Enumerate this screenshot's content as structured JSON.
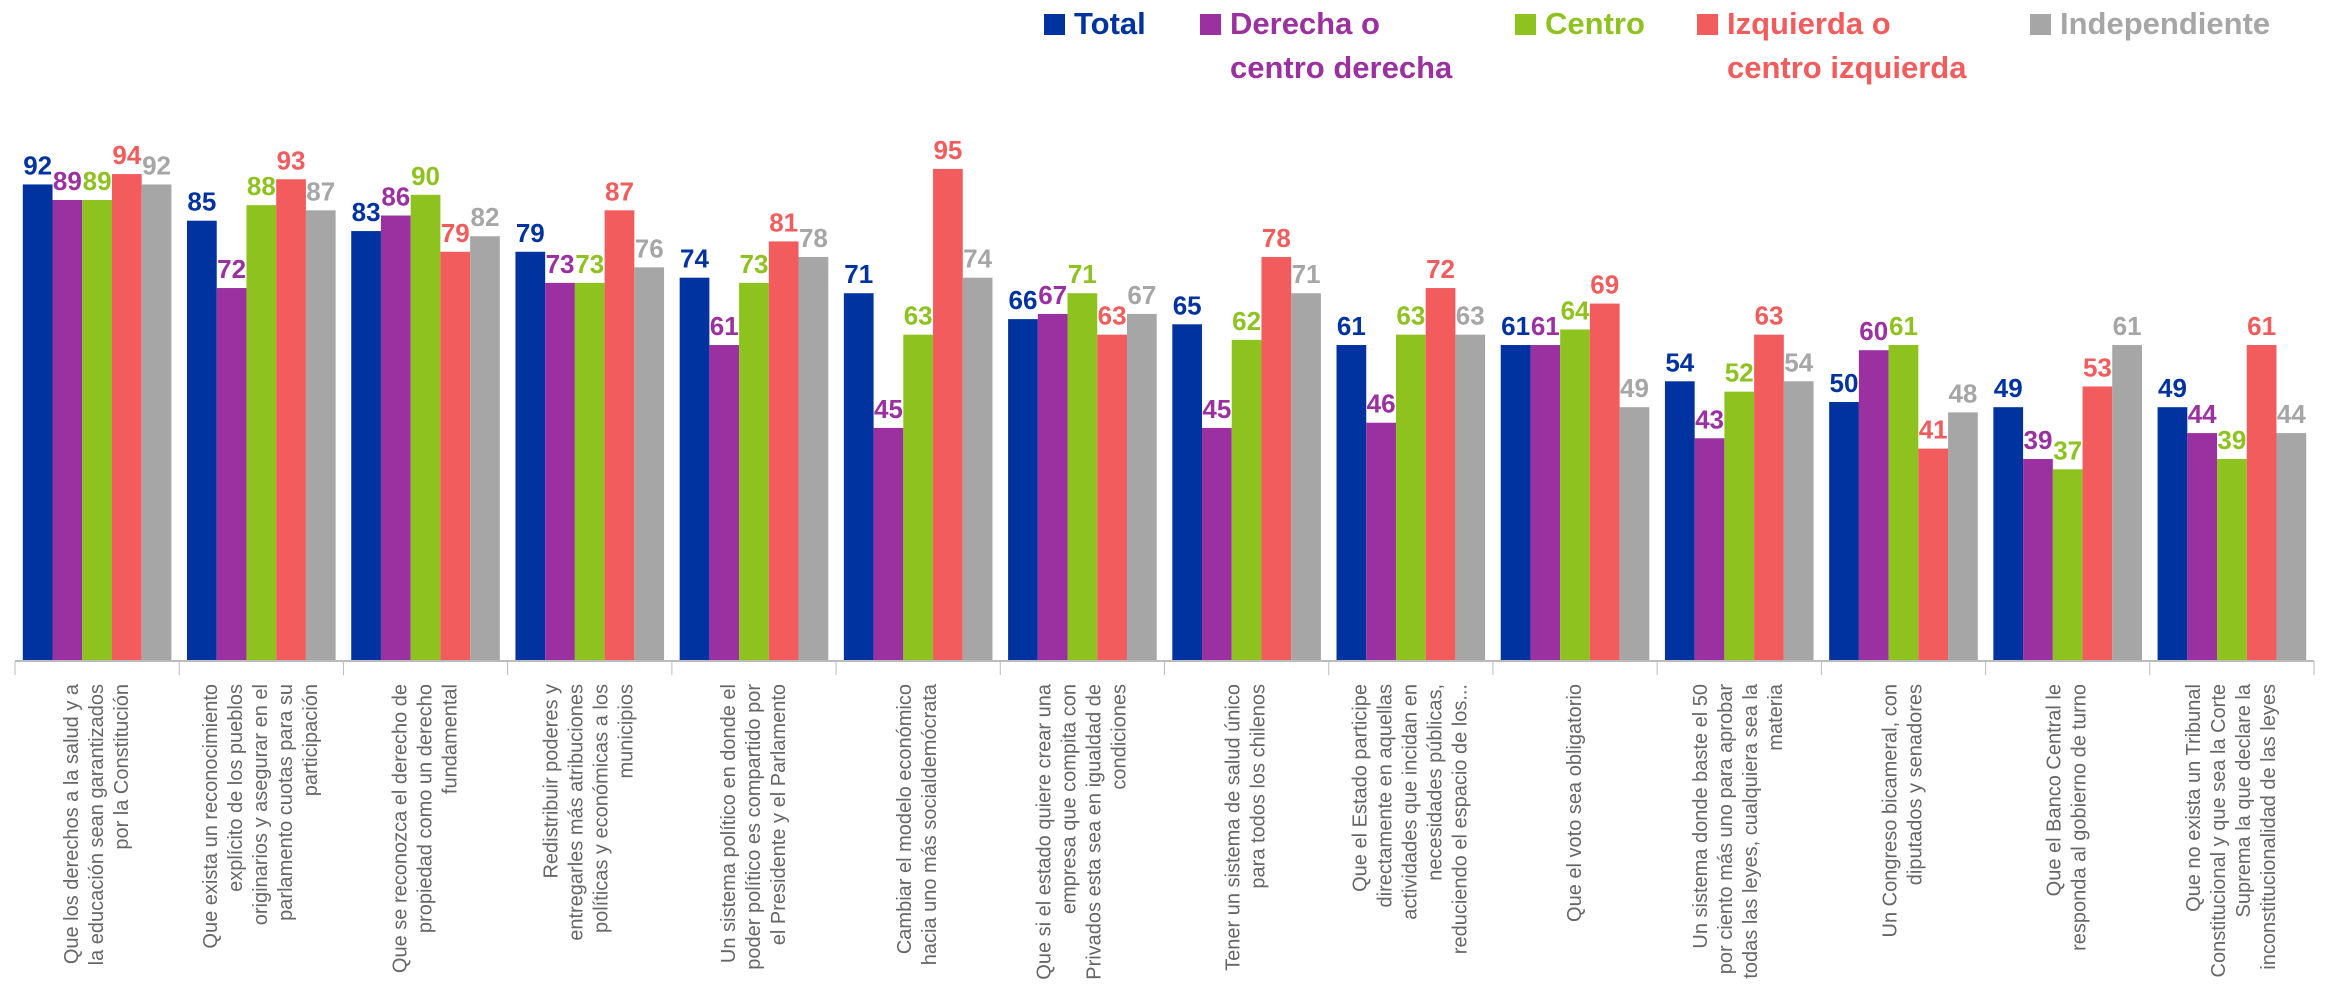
{
  "chart_data": {
    "type": "bar",
    "categories": [
      "Que los derechos a la salud y a la educación sean garantizados por la Constitución",
      "Que exista un reconocimiento explícito de los pueblos originarios y asegurar en el parlamento cuotas para su participación",
      "Que se reconozca el derecho de propiedad como un derecho fundamental",
      "Redistribuir poderes y entregarles más atribuciones políticas y económicas a los municipios",
      "Un sistema político en donde el poder político es compartido por el Presidente y el Parlamento",
      "Cambiar el modelo económico hacia uno más socialdemócrata",
      "Que si el estado quiere crear una empresa que compita con Privados esta sea en igualdad de condiciones",
      "Tener un sistema de salud único para todos los chilenos",
      "Que el Estado participe directamente en aquellas actividades que incidan en necesidades públicas, reduciendo el espacio de los...",
      "Que el voto sea obligatorio",
      "Un sistema donde baste el 50 por ciento más uno para aprobar todas las leyes, cualquiera sea la materia",
      "Un Congreso bicameral, con diputados y senadores",
      "Que el Banco Central le responda al gobierno de turno",
      "Que no exista un Tribunal Constitucional y que sea la Corte Suprema la que declare la inconstitucionalidad de las leyes"
    ],
    "series": [
      {
        "name": "Total",
        "color": "#0033a0",
        "values": [
          92,
          85,
          83,
          79,
          74,
          71,
          66,
          65,
          61,
          61,
          54,
          50,
          49,
          49
        ]
      },
      {
        "name": "Derecha o centro derecha",
        "color": "#9b30a0",
        "values": [
          89,
          72,
          86,
          73,
          61,
          45,
          67,
          45,
          46,
          61,
          43,
          60,
          39,
          44
        ]
      },
      {
        "name": "Centro",
        "color": "#8dc21f",
        "values": [
          89,
          88,
          90,
          73,
          73,
          63,
          71,
          62,
          63,
          64,
          52,
          61,
          37,
          39
        ]
      },
      {
        "name": "Izquierda o centro izquierda",
        "color": "#f25c5c",
        "values": [
          94,
          93,
          79,
          87,
          81,
          95,
          63,
          78,
          72,
          69,
          63,
          41,
          53,
          61
        ]
      },
      {
        "name": "Independiente",
        "color": "#a6a6a6",
        "values": [
          92,
          87,
          82,
          76,
          78,
          74,
          67,
          71,
          63,
          49,
          54,
          48,
          61,
          44
        ]
      }
    ]
  }
}
